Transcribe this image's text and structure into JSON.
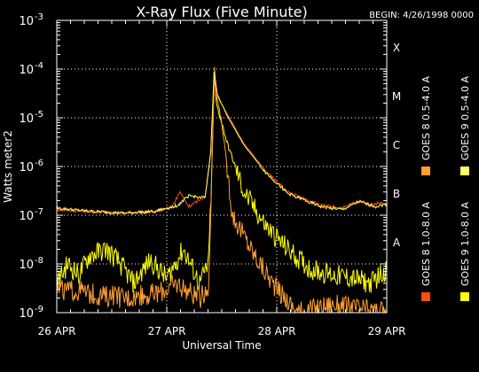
{
  "chart_data": {
    "type": "line",
    "title": "X-Ray Flux (Five Minute)",
    "begin_label": "BEGIN: 4/26/1998 0000",
    "xlabel": "Universal Time",
    "ylabel": "Watts meter2",
    "x_ticks": [
      "26 APR",
      "27 APR",
      "28 APR",
      "29 APR"
    ],
    "x_range_days": [
      0,
      3
    ],
    "y_scale": "log",
    "y_range": [
      1e-09,
      0.001
    ],
    "y_ticks": [
      {
        "base": "10",
        "exp": "-9"
      },
      {
        "base": "10",
        "exp": "-8"
      },
      {
        "base": "10",
        "exp": "-7"
      },
      {
        "base": "10",
        "exp": "-6"
      },
      {
        "base": "10",
        "exp": "-5"
      },
      {
        "base": "10",
        "exp": "-4"
      },
      {
        "base": "10",
        "exp": "-3"
      }
    ],
    "flare_classes": [
      {
        "label": "A",
        "value": 1e-08
      },
      {
        "label": "B",
        "value": 1e-07
      },
      {
        "label": "C",
        "value": 1e-06
      },
      {
        "label": "M",
        "value": 1e-05
      },
      {
        "label": "X",
        "value": 0.0001
      }
    ],
    "grid": "dotted",
    "legend_position": "right, vertical",
    "series": [
      {
        "name": "GOES 8 1.0-8.0 A",
        "color": "#ff4a10",
        "points": [
          [
            0,
            1.3e-07
          ],
          [
            0.3,
            1.2e-07
          ],
          [
            0.6,
            1.1e-07
          ],
          [
            0.9,
            1.2e-07
          ],
          [
            1.05,
            1.5e-07
          ],
          [
            1.12,
            3e-07
          ],
          [
            1.2,
            1.5e-07
          ],
          [
            1.35,
            2.5e-07
          ],
          [
            1.4,
            2e-06
          ],
          [
            1.43,
            5e-05
          ],
          [
            1.45,
            3e-05
          ],
          [
            1.55,
            1.2e-05
          ],
          [
            1.7,
            3e-06
          ],
          [
            1.9,
            8e-07
          ],
          [
            2.1,
            3e-07
          ],
          [
            2.4,
            1.6e-07
          ],
          [
            2.6,
            1.4e-07
          ],
          [
            2.75,
            2e-07
          ],
          [
            2.85,
            1.6e-07
          ],
          [
            2.95,
            1.8e-07
          ],
          [
            3.0,
            1.5e-07
          ]
        ]
      },
      {
        "name": "GOES 8 0.5-4.0 A",
        "color": "#ff9f2f",
        "points": [
          [
            0,
            3e-09
          ],
          [
            0.3,
            2.5e-09
          ],
          [
            0.6,
            2e-09
          ],
          [
            0.9,
            2.5e-09
          ],
          [
            1.1,
            4e-09
          ],
          [
            1.3,
            2e-09
          ],
          [
            1.38,
            3e-09
          ],
          [
            1.41,
            1e-06
          ],
          [
            1.435,
            0.0001
          ],
          [
            1.45,
            3e-05
          ],
          [
            1.5,
            8e-06
          ],
          [
            1.6,
            1e-07
          ],
          [
            1.8,
            1.5e-08
          ],
          [
            2.0,
            3e-09
          ],
          [
            2.2,
            1e-09
          ],
          [
            2.5,
            1.5e-09
          ],
          [
            3.0,
            1e-09
          ]
        ]
      },
      {
        "name": "GOES 9 0.5-4.0 A",
        "color": "#ffff66",
        "points": [
          [
            0,
            1.4e-07
          ],
          [
            0.3,
            1.2e-07
          ],
          [
            0.6,
            1.1e-07
          ],
          [
            0.9,
            1.2e-07
          ],
          [
            1.1,
            1.6e-07
          ],
          [
            1.2,
            2.5e-07
          ],
          [
            1.35,
            2.3e-07
          ],
          [
            1.4,
            2e-06
          ],
          [
            1.43,
            9e-05
          ],
          [
            1.46,
            3e-05
          ],
          [
            1.55,
            1.1e-05
          ],
          [
            1.7,
            2.8e-06
          ],
          [
            1.9,
            7.5e-07
          ],
          [
            2.1,
            2.8e-07
          ],
          [
            2.4,
            1.5e-07
          ],
          [
            2.6,
            1.3e-07
          ],
          [
            2.75,
            1.9e-07
          ],
          [
            2.9,
            1.5e-07
          ],
          [
            3.0,
            1.7e-07
          ]
        ]
      },
      {
        "name": "GOES 9 1.0-8.0 A",
        "color": "#ffff00",
        "points": [
          [
            0,
            4e-09
          ],
          [
            0.1,
            1e-08
          ],
          [
            0.2,
            6e-09
          ],
          [
            0.3,
            1.5e-08
          ],
          [
            0.45,
            2e-08
          ],
          [
            0.55,
            1.2e-08
          ],
          [
            0.7,
            4e-09
          ],
          [
            0.85,
            1.2e-08
          ],
          [
            1.0,
            5e-09
          ],
          [
            1.15,
            2e-08
          ],
          [
            1.3,
            4e-09
          ],
          [
            1.38,
            1e-08
          ],
          [
            1.41,
            8e-07
          ],
          [
            1.43,
            7e-05
          ],
          [
            1.45,
            2e-05
          ],
          [
            1.55,
            3e-06
          ],
          [
            1.7,
            3e-07
          ],
          [
            1.9,
            6e-08
          ],
          [
            2.1,
            2e-08
          ],
          [
            2.3,
            8e-09
          ],
          [
            2.5,
            6e-09
          ],
          [
            2.7,
            5e-09
          ],
          [
            2.85,
            4e-09
          ],
          [
            3.0,
            8e-09
          ]
        ]
      }
    ]
  }
}
